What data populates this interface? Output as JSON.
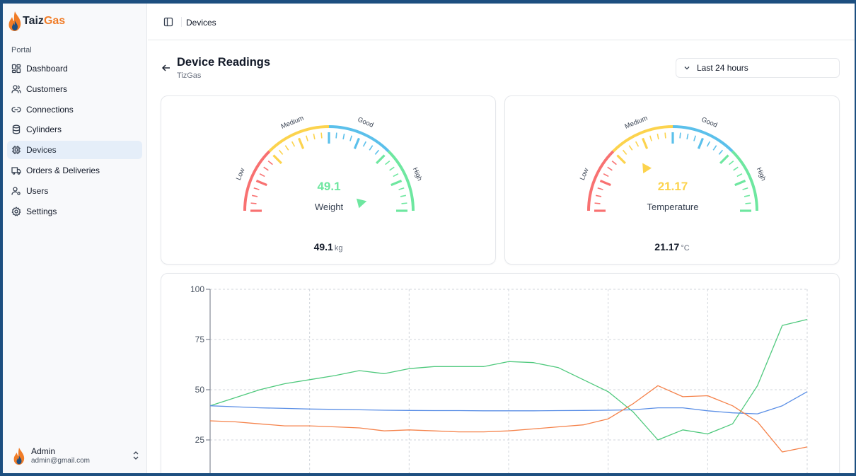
{
  "brand": {
    "name_part1": "Taiz",
    "name_part2": "Gas"
  },
  "sidebar": {
    "section_label": "Portal",
    "items": [
      {
        "label": "Dashboard",
        "icon": "dashboard-icon"
      },
      {
        "label": "Customers",
        "icon": "users-icon"
      },
      {
        "label": "Connections",
        "icon": "link-icon"
      },
      {
        "label": "Cylinders",
        "icon": "cylinder-icon"
      },
      {
        "label": "Devices",
        "icon": "chip-icon",
        "active": true
      },
      {
        "label": "Orders & Deliveries",
        "icon": "truck-icon"
      },
      {
        "label": "Users",
        "icon": "user-key-icon"
      },
      {
        "label": "Settings",
        "icon": "gear-icon"
      }
    ],
    "user": {
      "name": "Admin",
      "email": "admin@gmail.com"
    }
  },
  "topbar": {
    "title": "Devices"
  },
  "page": {
    "title": "Device Readings",
    "subtitle": "TizGas"
  },
  "range_select": {
    "value": "Last 24 hours"
  },
  "gauges": [
    {
      "label": "Weight",
      "value_text": "49.1",
      "value": 49.1,
      "unit": "kg",
      "value_color": "#6ee7a0",
      "band_labels": [
        "Low",
        "Medium",
        "Good",
        "High"
      ]
    },
    {
      "label": "Temperature",
      "value_text": "21.17",
      "value": 21.17,
      "unit": "°C",
      "value_color": "#fcd34d",
      "band_labels": [
        "Low",
        "Medium",
        "Good",
        "High"
      ]
    }
  ],
  "colors": {
    "low": "#f87171",
    "medium": "#fcd34d",
    "good": "#5bc0eb",
    "high": "#6ee7a0",
    "series_green": "#4fc97d",
    "series_blue": "#5b8fe6",
    "series_orange": "#f5824a"
  },
  "chart_data": {
    "type": "line",
    "y_ticks": [
      "100",
      "75",
      "50",
      "25"
    ],
    "ylim": [
      0,
      100
    ],
    "grid": true,
    "x": [
      0,
      1,
      2,
      3,
      4,
      5,
      6,
      7,
      8,
      9,
      10,
      11,
      12,
      13,
      14,
      15,
      16,
      17,
      18,
      19,
      20,
      21,
      22,
      23,
      24
    ],
    "series": [
      {
        "color": "#4fc97d",
        "values": [
          42,
          46,
          50,
          53,
          55,
          57,
          59.5,
          58,
          60.5,
          61.5,
          61.5,
          61.5,
          64,
          63.5,
          61,
          55,
          49,
          39,
          25,
          30,
          28,
          33,
          52,
          82,
          85
        ]
      },
      {
        "color": "#5b8fe6",
        "values": [
          42,
          41.5,
          41,
          40.7,
          40.4,
          40.2,
          40,
          39.8,
          39.7,
          39.6,
          39.6,
          39.5,
          39.5,
          39.5,
          39.6,
          39.7,
          39.8,
          40,
          41,
          41,
          39.5,
          38.5,
          38,
          42,
          49
        ]
      },
      {
        "color": "#f5824a",
        "values": [
          34.5,
          34,
          33,
          32,
          32,
          31.5,
          31,
          29.5,
          30,
          29.5,
          29,
          29,
          29.5,
          30.5,
          31.5,
          32.5,
          35.5,
          43,
          52,
          46.5,
          47,
          42,
          34,
          19,
          21.5
        ]
      }
    ]
  }
}
